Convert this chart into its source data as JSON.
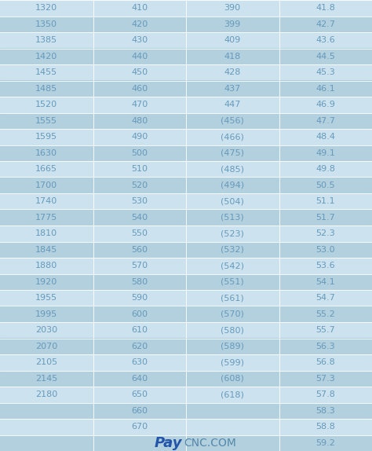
{
  "rows": [
    [
      "1320",
      "410",
      "390",
      "41.8"
    ],
    [
      "1350",
      "420",
      "399",
      "42.7"
    ],
    [
      "1385",
      "430",
      "409",
      "43.6"
    ],
    [
      "1420",
      "440",
      "418",
      "44.5"
    ],
    [
      "1455",
      "450",
      "428",
      "45.3"
    ],
    [
      "1485",
      "460",
      "437",
      "46.1"
    ],
    [
      "1520",
      "470",
      "447",
      "46.9"
    ],
    [
      "1555",
      "480",
      "(456)",
      "47.7"
    ],
    [
      "1595",
      "490",
      "(466)",
      "48.4"
    ],
    [
      "1630",
      "500",
      "(475)",
      "49.1"
    ],
    [
      "1665",
      "510",
      "(485)",
      "49.8"
    ],
    [
      "1700",
      "520",
      "(494)",
      "50.5"
    ],
    [
      "1740",
      "530",
      "(504)",
      "51.1"
    ],
    [
      "1775",
      "540",
      "(513)",
      "51.7"
    ],
    [
      "1810",
      "550",
      "(523)",
      "52.3"
    ],
    [
      "1845",
      "560",
      "(532)",
      "53.0"
    ],
    [
      "1880",
      "570",
      "(542)",
      "53.6"
    ],
    [
      "1920",
      "580",
      "(551)",
      "54.1"
    ],
    [
      "1955",
      "590",
      "(561)",
      "54.7"
    ],
    [
      "1995",
      "600",
      "(570)",
      "55.2"
    ],
    [
      "2030",
      "610",
      "(580)",
      "55.7"
    ],
    [
      "2070",
      "620",
      "(589)",
      "56.3"
    ],
    [
      "2105",
      "630",
      "(599)",
      "56.8"
    ],
    [
      "2145",
      "640",
      "(608)",
      "57.3"
    ],
    [
      "2180",
      "650",
      "(618)",
      "57.8"
    ],
    [
      "",
      "660",
      "",
      "58.3"
    ],
    [
      "",
      "670",
      "",
      "58.8"
    ],
    [
      "",
      "",
      "",
      "59.2"
    ]
  ],
  "bg_color_light": "#cce3ef",
  "bg_color_dark": "#b2d0de",
  "text_color": "#6699bb",
  "watermark_color_pay": "#2255aa",
  "watermark_color_cnc": "#5588aa",
  "watermark_text_pay": "Pay",
  "watermark_text_cnc": "CNC.COM",
  "figure_bg": "#aacbdb",
  "border_color": "#ffffff"
}
